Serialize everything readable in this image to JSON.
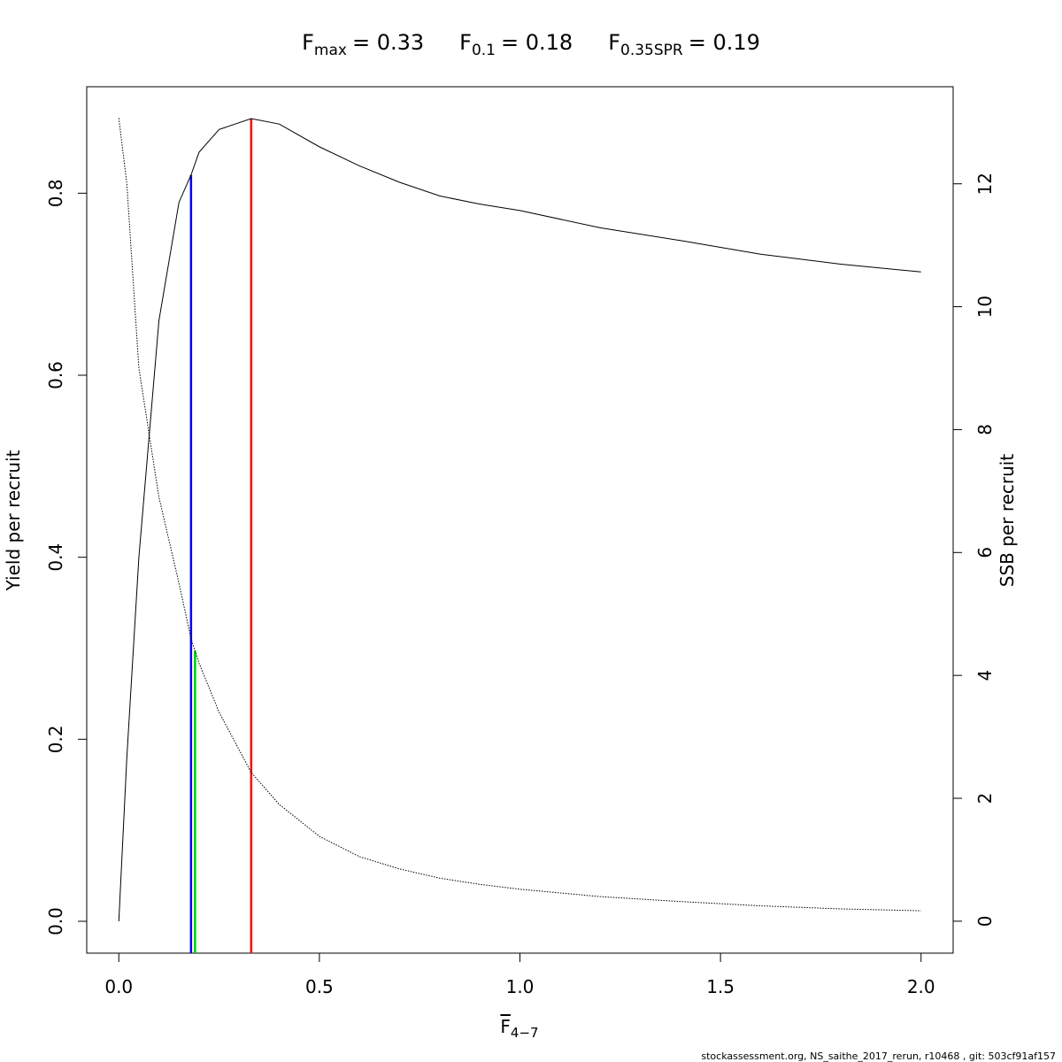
{
  "chart_data": {
    "type": "line",
    "title": [
      {
        "base": "F",
        "sub": "max",
        "rest": "= 0.33"
      },
      {
        "base": "F",
        "sub": "0.1",
        "rest": "= 0.18"
      },
      {
        "base": "F",
        "sub": "0.35SPR",
        "rest": "= 0.19"
      }
    ],
    "x_label": {
      "base": "F",
      "sub": "4−7"
    },
    "y_label": "Yield per recruit",
    "y2_label": "SSB per recruit",
    "footer": "stockassessment.org, NS_saithe_2017_rerun, r10468 , git: 503cf91af157",
    "x": [
      0,
      0.02,
      0.05,
      0.1,
      0.15,
      0.18,
      0.2,
      0.25,
      0.33,
      0.4,
      0.5,
      0.6,
      0.7,
      0.8,
      0.9,
      1.0,
      1.2,
      1.4,
      1.6,
      1.8,
      2.0
    ],
    "series": [
      {
        "name": "Yield per recruit",
        "color": "#000000",
        "dash": "solid",
        "values": [
          0,
          0.18,
          0.4,
          0.66,
          0.79,
          0.82,
          0.845,
          0.87,
          0.882,
          0.876,
          0.851,
          0.83,
          0.812,
          0.797,
          0.788,
          0.781,
          0.762,
          0.748,
          0.733,
          0.722,
          0.7135
        ]
      },
      {
        "name": "SSB per recruit",
        "color": "#000000",
        "dash": "dotted",
        "axis": "y2",
        "values": [
          13.07,
          12.0,
          9.0,
          6.9,
          5.5,
          4.6,
          4.2,
          3.4,
          2.42,
          1.9,
          1.38,
          1.05,
          0.85,
          0.7,
          0.6,
          0.52,
          0.4,
          0.32,
          0.25,
          0.2,
          0.17
        ]
      }
    ],
    "ref_lines": [
      {
        "x": 0.33,
        "top": 0.882,
        "color": "#ff0000"
      },
      {
        "x": 0.18,
        "top": 0.82,
        "color": "#0000ff"
      },
      {
        "x": 0.19,
        "top": 4.4,
        "axis": "y2",
        "color": "#00cc00"
      }
    ],
    "xlim": [
      -0.08,
      2.08
    ],
    "ylim": [
      -0.035,
      0.917
    ],
    "y2lim": [
      -0.52,
      13.58
    ],
    "xticks": [
      {
        "value": 0,
        "label": "0.0"
      },
      {
        "value": 0.5,
        "label": "0.5"
      },
      {
        "value": 1,
        "label": "1.0"
      },
      {
        "value": 1.5,
        "label": "1.5"
      },
      {
        "value": 2,
        "label": "2.0"
      }
    ],
    "yticks": [
      {
        "value": 0,
        "label": "0.0"
      },
      {
        "value": 0.2,
        "label": "0.2"
      },
      {
        "value": 0.4,
        "label": "0.4"
      },
      {
        "value": 0.6,
        "label": "0.6"
      },
      {
        "value": 0.8,
        "label": "0.8"
      }
    ],
    "y2ticks": [
      0,
      2,
      4,
      6,
      8,
      10,
      12
    ]
  }
}
